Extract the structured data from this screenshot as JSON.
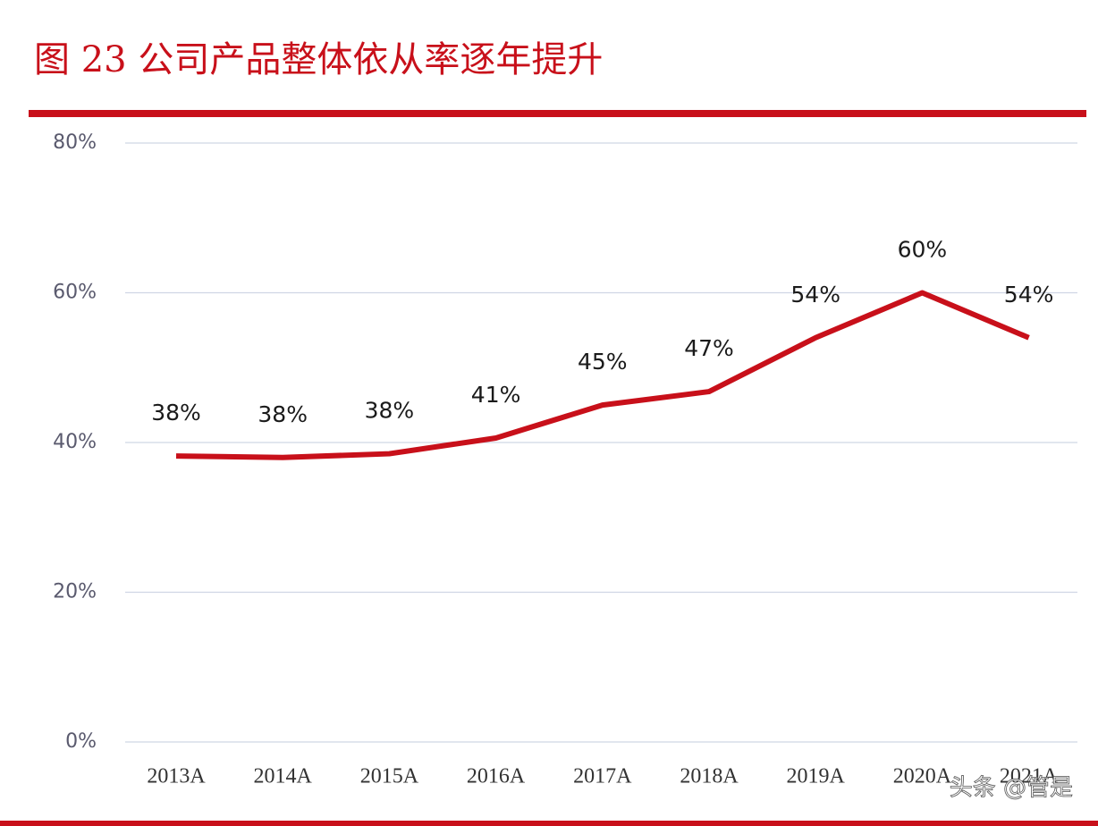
{
  "chart_data": {
    "type": "line",
    "title": "图 23 公司产品整体依从率逐年提升",
    "categories": [
      "2013A",
      "2014A",
      "2015A",
      "2016A",
      "2017A",
      "2018A",
      "2019A",
      "2020A",
      "2021A"
    ],
    "series": [
      {
        "color": "#c8101a",
        "values": [
          38.2,
          38,
          38.5,
          40.6,
          45,
          46.8,
          54,
          60,
          54
        ],
        "value_labels": [
          "38%",
          "38%",
          "38%",
          "41%",
          "45%",
          "47%",
          "54%",
          "60%",
          "54%"
        ]
      }
    ],
    "ylim": [
      0,
      80
    ],
    "yticks": [
      {
        "value": 0,
        "label": "0%"
      },
      {
        "value": 20,
        "label": "20%"
      },
      {
        "value": 40,
        "label": "40%"
      },
      {
        "value": 60,
        "label": "60%"
      },
      {
        "value": 80,
        "label": "80%"
      }
    ],
    "grid": true,
    "watermark": "头条 @管是"
  }
}
